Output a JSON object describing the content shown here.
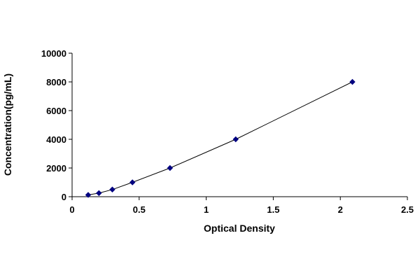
{
  "chart_data": {
    "type": "scatter",
    "title": "",
    "xlabel": "Optical Density",
    "ylabel": "Concentration(pg/mL)",
    "xlim": [
      0,
      2.5
    ],
    "ylim": [
      0,
      10000
    ],
    "x_ticks": [
      "0",
      "0.5",
      "1",
      "1.5",
      "2",
      "2.5"
    ],
    "y_ticks": [
      "0",
      "2000",
      "4000",
      "6000",
      "8000",
      "10000"
    ],
    "grid": false,
    "legend": "none",
    "series": [
      {
        "points": [
          {
            "x": 0.12,
            "y": 125
          },
          {
            "x": 0.2,
            "y": 250
          },
          {
            "x": 0.3,
            "y": 500
          },
          {
            "x": 0.45,
            "y": 1000
          },
          {
            "x": 0.73,
            "y": 2000
          },
          {
            "x": 1.22,
            "y": 4000
          },
          {
            "x": 2.09,
            "y": 8000
          }
        ],
        "marker": "diamond",
        "trendline": true,
        "color": "#000080"
      }
    ]
  }
}
